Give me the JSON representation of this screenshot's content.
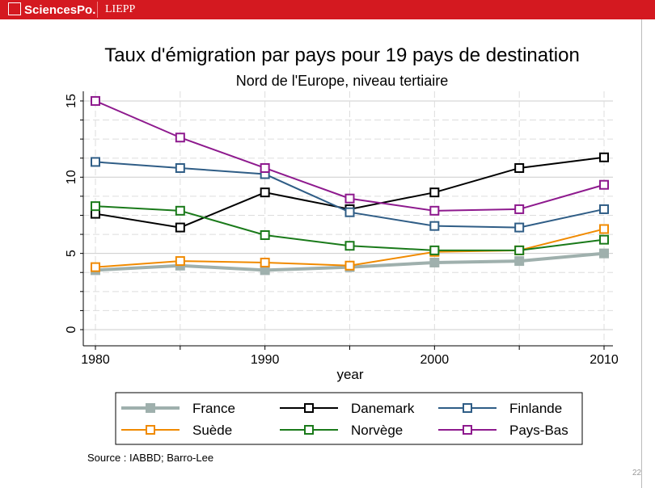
{
  "header": {
    "brand": "SciencesPo.",
    "unit": "LIEPP"
  },
  "source": "Source : IABBD; Barro-Lee",
  "page_number": "22",
  "chart_data": {
    "type": "line",
    "title": "Taux d'émigration par pays pour 19 pays de destination",
    "subtitle": "Nord de l'Europe, niveau tertiaire",
    "xlabel": "year",
    "ylabel": "",
    "x": [
      1980,
      1985,
      1990,
      1995,
      2000,
      2005,
      2010
    ],
    "xticks": [
      1980,
      1990,
      2000,
      2010
    ],
    "yticks": [
      0,
      5,
      10,
      15
    ],
    "ylim": [
      0,
      15.5
    ],
    "xlim": [
      1980,
      2010
    ],
    "grid": true,
    "legend": "bottom",
    "series": [
      {
        "name": "France",
        "color": "#9fb0ad",
        "values": [
          3.9,
          4.2,
          3.9,
          4.1,
          4.4,
          4.5,
          5.0
        ],
        "filled": true
      },
      {
        "name": "Danemark",
        "color": "#000000",
        "values": [
          7.6,
          6.7,
          9.0,
          7.9,
          9.0,
          10.6,
          11.3
        ]
      },
      {
        "name": "Finlande",
        "color": "#2f5d86",
        "values": [
          11.0,
          10.6,
          10.2,
          7.7,
          6.8,
          6.7,
          7.9
        ]
      },
      {
        "name": "Suède",
        "color": "#f08a00",
        "values": [
          4.1,
          4.5,
          4.4,
          4.2,
          5.1,
          5.2,
          6.6
        ]
      },
      {
        "name": "Norvège",
        "color": "#1a7a1a",
        "values": [
          8.1,
          7.8,
          6.2,
          5.5,
          5.2,
          5.2,
          5.9
        ]
      },
      {
        "name": "Pays-Bas",
        "color": "#8e1a8e",
        "values": [
          15.0,
          12.6,
          10.6,
          8.6,
          7.8,
          7.9,
          9.5
        ]
      }
    ]
  }
}
